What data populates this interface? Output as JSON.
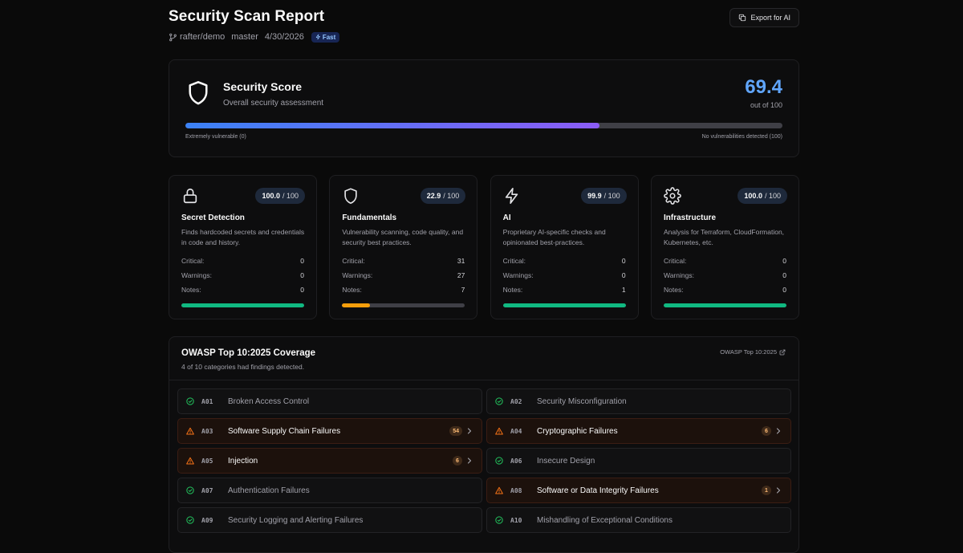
{
  "header": {
    "title": "Security Scan Report",
    "repo": "rafter/demo",
    "branch": "master",
    "date": "4/30/2026",
    "mode_badge": "Fast",
    "export_label": "Export for AI"
  },
  "score": {
    "title": "Security Score",
    "subtitle": "Overall security assessment",
    "value": "69.4",
    "out_of": "out of 100",
    "progress_fraction": 0.694,
    "min_label": "Extremely vulnerable (0)",
    "max_label": "No vulnerabilities detected (100)"
  },
  "categories": [
    {
      "icon": "lock-icon",
      "score": "100.0",
      "max": "/ 100",
      "name": "Secret Detection",
      "description": "Finds hardcoded secrets and credentials in code and history.",
      "critical_label": "Critical:",
      "critical": "0",
      "warnings_label": "Warnings:",
      "warnings": "0",
      "notes_label": "Notes:",
      "notes": "0",
      "bar_fraction": 1.0,
      "bar_color": "#10b981"
    },
    {
      "icon": "shield-icon",
      "score": "22.9",
      "max": "/ 100",
      "name": "Fundamentals",
      "description": "Vulnerability scanning, code quality, and security best practices.",
      "critical_label": "Critical:",
      "critical": "31",
      "warnings_label": "Warnings:",
      "warnings": "27",
      "notes_label": "Notes:",
      "notes": "7",
      "bar_fraction": 0.229,
      "bar_color": "#f59e0b"
    },
    {
      "icon": "lightning-icon",
      "score": "99.9",
      "max": "/ 100",
      "name": "AI",
      "description": "Proprietary AI-specific checks and opinionated best-practices.",
      "critical_label": "Critical:",
      "critical": "0",
      "warnings_label": "Warnings:",
      "warnings": "0",
      "notes_label": "Notes:",
      "notes": "1",
      "bar_fraction": 0.999,
      "bar_color": "#10b981"
    },
    {
      "icon": "gear-icon",
      "score": "100.0",
      "max": "/ 100",
      "name": "Infrastructure",
      "description": "Analysis for Terraform, CloudFormation, Kubernetes, etc.",
      "critical_label": "Critical:",
      "critical": "0",
      "warnings_label": "Warnings:",
      "warnings": "0",
      "notes_label": "Notes:",
      "notes": "0",
      "bar_fraction": 1.0,
      "bar_color": "#10b981"
    }
  ],
  "owasp": {
    "title": "OWASP Top 10:2025 Coverage",
    "subtitle": "4 of 10 categories had findings detected.",
    "link_label": "OWASP Top 10:2025",
    "items": [
      {
        "code": "A01",
        "name": "Broken Access Control",
        "status": "pass",
        "count": ""
      },
      {
        "code": "A02",
        "name": "Security Misconfiguration",
        "status": "pass",
        "count": ""
      },
      {
        "code": "A03",
        "name": "Software Supply Chain Failures",
        "status": "fail",
        "count": "54"
      },
      {
        "code": "A04",
        "name": "Cryptographic Failures",
        "status": "fail",
        "count": "6"
      },
      {
        "code": "A05",
        "name": "Injection",
        "status": "fail",
        "count": "6"
      },
      {
        "code": "A06",
        "name": "Insecure Design",
        "status": "pass",
        "count": ""
      },
      {
        "code": "A07",
        "name": "Authentication Failures",
        "status": "pass",
        "count": ""
      },
      {
        "code": "A08",
        "name": "Software or Data Integrity Failures",
        "status": "fail",
        "count": "1"
      },
      {
        "code": "A09",
        "name": "Security Logging and Alerting Failures",
        "status": "pass",
        "count": ""
      },
      {
        "code": "A10",
        "name": "Mishandling of Exceptional Conditions",
        "status": "pass",
        "count": ""
      }
    ]
  },
  "colors": {
    "accent": "#60a5fa",
    "pass": "#22c55e",
    "fail": "#f97316"
  }
}
